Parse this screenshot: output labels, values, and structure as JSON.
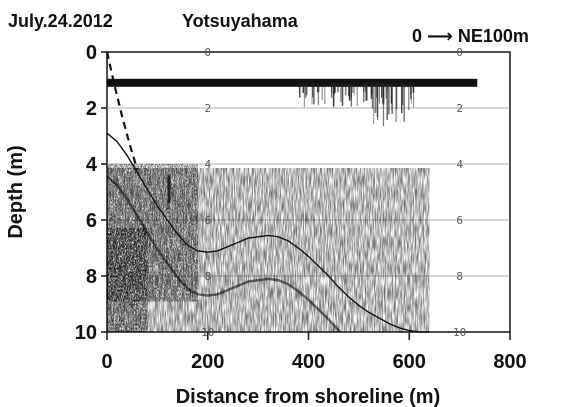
{
  "chart_data": {
    "type": "line",
    "title": "July.24.2012",
    "subtitle": "Yotsuyahama",
    "annotation": "0 ⟶ NE100m",
    "xlabel": "Distance from shoreline (m)",
    "ylabel": "Depth (m)",
    "xlim": [
      0,
      800
    ],
    "ylim": [
      10,
      0
    ],
    "x_ticks": [
      0,
      200,
      400,
      600,
      800
    ],
    "y_ticks": [
      0,
      2,
      4,
      6,
      8,
      10
    ],
    "grid": true,
    "sounder_depth_marks": [
      "0",
      "2",
      "4",
      "6",
      "8",
      "10"
    ],
    "series": [
      {
        "style": "solid",
        "x": [
          0,
          20,
          40,
          60,
          80,
          100,
          120,
          140,
          160,
          180,
          200,
          220,
          240,
          260,
          280,
          300,
          320,
          340,
          360,
          380,
          400,
          420,
          440,
          460,
          480,
          500,
          520,
          540,
          560,
          580,
          600,
          620,
          640
        ],
        "y": [
          2.9,
          3.2,
          3.7,
          4.3,
          4.9,
          5.5,
          6.0,
          6.5,
          6.9,
          7.1,
          7.15,
          7.1,
          6.95,
          6.8,
          6.65,
          6.6,
          6.55,
          6.6,
          6.75,
          7.0,
          7.3,
          7.65,
          8.0,
          8.4,
          8.75,
          9.05,
          9.3,
          9.5,
          9.7,
          9.85,
          9.95,
          10.0,
          10.0
        ]
      },
      {
        "style": "dashed",
        "x": [
          0,
          15,
          30,
          45,
          60
        ],
        "y": [
          0.0,
          1.2,
          2.3,
          3.3,
          4.2
        ]
      }
    ],
    "surface_band_depth": 1.1,
    "surface_band_x": [
      0,
      735
    ]
  }
}
